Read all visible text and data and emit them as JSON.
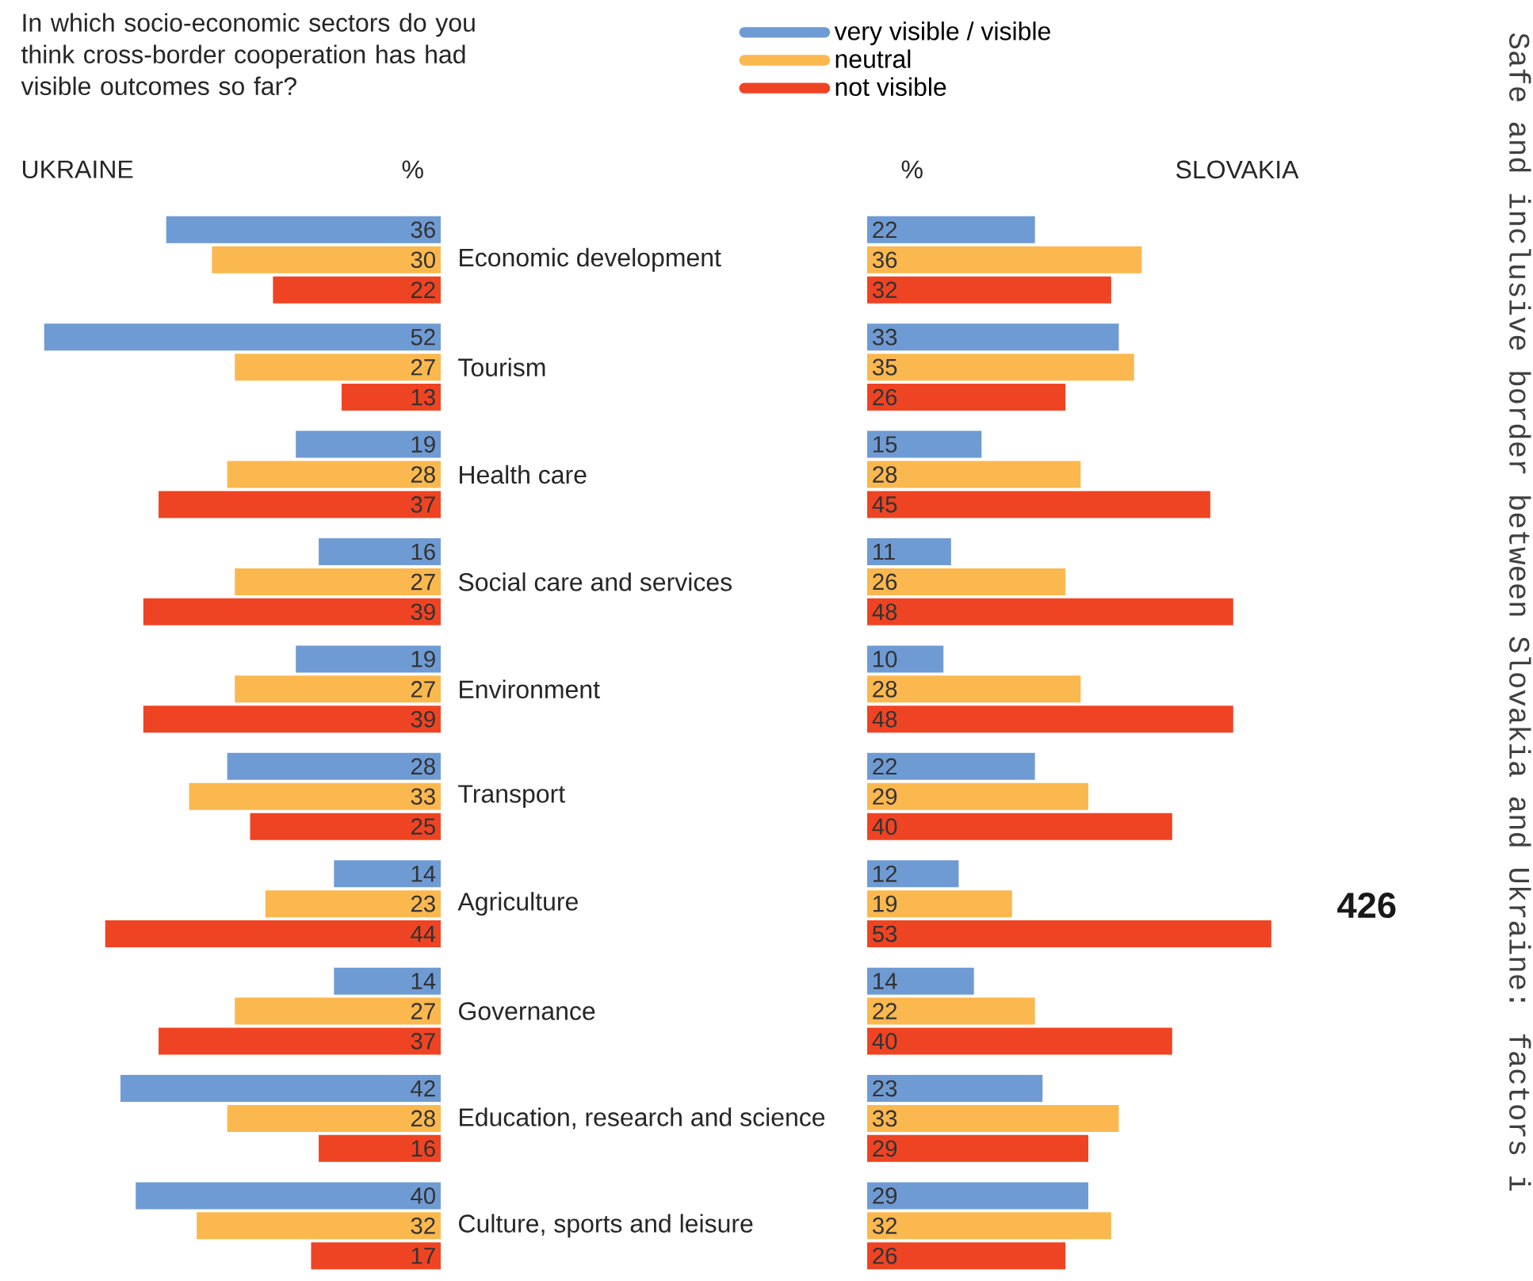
{
  "chart_data": [
    {
      "type": "bar",
      "orientation": "horizontal",
      "title": "In which socio-economic sectors do you think cross-border cooperation has had visible outcomes so far?",
      "subtitle": "UKRAINE",
      "categories": [
        "Economic development",
        "Tourism",
        "Health care",
        "Social care and services",
        "Environment",
        "Transport",
        "Agriculture",
        "Governance",
        "Education, research and science",
        "Culture, sports and leisure"
      ],
      "series": [
        {
          "name": "very visible / visible",
          "color": "#6f9bd4",
          "values": [
            36,
            52,
            19,
            16,
            19,
            28,
            14,
            14,
            42,
            40
          ]
        },
        {
          "name": "neutral",
          "color": "#fbb84f",
          "values": [
            30,
            27,
            28,
            27,
            27,
            33,
            23,
            27,
            28,
            32
          ]
        },
        {
          "name": "not visible",
          "color": "#ef4423",
          "values": [
            22,
            13,
            37,
            39,
            39,
            25,
            44,
            37,
            16,
            17
          ]
        }
      ],
      "data_labels": true,
      "tick_labels": "y",
      "legend": "top",
      "annotations": [
        "%"
      ]
    },
    {
      "type": "bar",
      "orientation": "horizontal",
      "title": "SLOVAKIA",
      "categories": [
        null,
        null,
        null,
        null,
        null,
        null,
        null,
        null,
        null,
        null
      ],
      "series": [
        {
          "color": "#6f9bd4",
          "values": [
            22,
            33,
            15,
            11,
            10,
            22,
            12,
            14,
            23,
            29
          ]
        },
        {
          "color": "#fbb84f",
          "values": [
            36,
            35,
            28,
            26,
            28,
            29,
            19,
            22,
            33,
            32
          ]
        },
        {
          "color": "#ef4423",
          "values": [
            32,
            26,
            45,
            48,
            48,
            40,
            53,
            40,
            29,
            26
          ]
        }
      ],
      "data_labels": true,
      "tick_labels": false,
      "annotations": [
        "%",
        "Safe and inclusive border between Slovakia and Ukraine: factors i",
        "426"
      ]
    }
  ]
}
